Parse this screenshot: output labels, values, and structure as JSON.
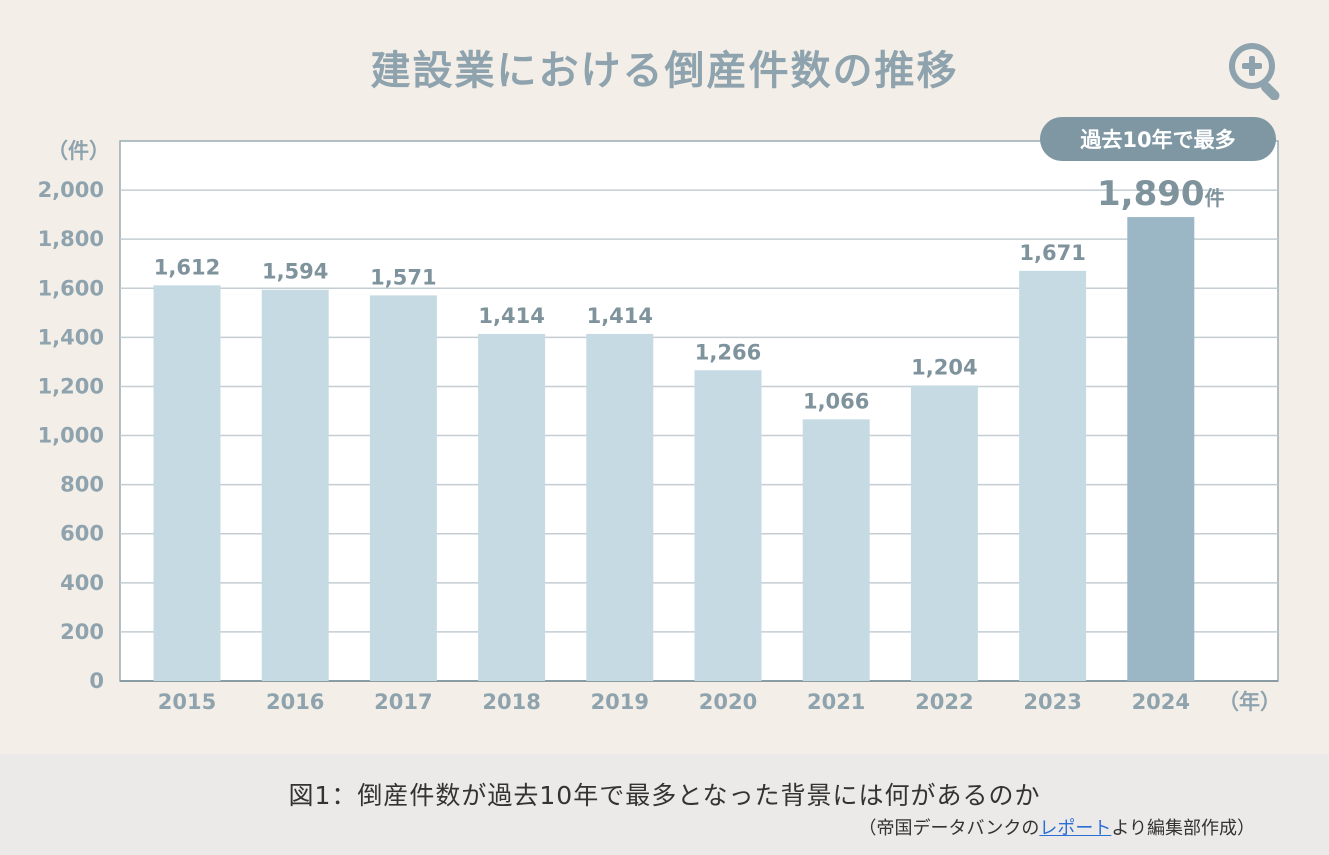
{
  "colors": {
    "background": "#f3efe8",
    "bar": "#c6dae4",
    "bar_highlight": "#9bb6c4",
    "text": "#8ea3ad",
    "label": "#7f939d",
    "grid": "#c3cdd2",
    "badge": "#7f97a3",
    "caption_bg": "#ebeae8",
    "link": "#2b6fd6"
  },
  "icons": {
    "zoom": "zoom-in-magnifier-icon"
  },
  "chart_data": {
    "type": "bar",
    "title": "建設業における倒産件数の推移",
    "ylabel": "（件）",
    "xlabel": "（年）",
    "categories": [
      "2015",
      "2016",
      "2017",
      "2018",
      "2019",
      "2020",
      "2021",
      "2022",
      "2023",
      "2024"
    ],
    "values": [
      1612,
      1594,
      1571,
      1414,
      1414,
      1266,
      1066,
      1204,
      1671,
      1890
    ],
    "data_labels": [
      "1,612",
      "1,594",
      "1,571",
      "1,414",
      "1,414",
      "1,266",
      "1,066",
      "1,204",
      "1,671",
      "1,890"
    ],
    "highlight_index": 9,
    "highlight_unit": "件",
    "highlight_badge": "過去10年で最多",
    "ylim": [
      0,
      2200
    ],
    "yticks": [
      0,
      200,
      400,
      600,
      800,
      1000,
      1200,
      1400,
      1600,
      1800,
      2000
    ],
    "ytick_labels": [
      "0",
      "200",
      "400",
      "600",
      "800",
      "1,000",
      "1,200",
      "1,400",
      "1,600",
      "1,800",
      "2,000"
    ],
    "grid": true
  },
  "caption": {
    "text": "図1：倒産件数が過去10年で最多となった背景には何があるのか",
    "credit_prefix": "（帝国データバンクの",
    "credit_link": "レポート",
    "credit_suffix": "より編集部作成）"
  }
}
